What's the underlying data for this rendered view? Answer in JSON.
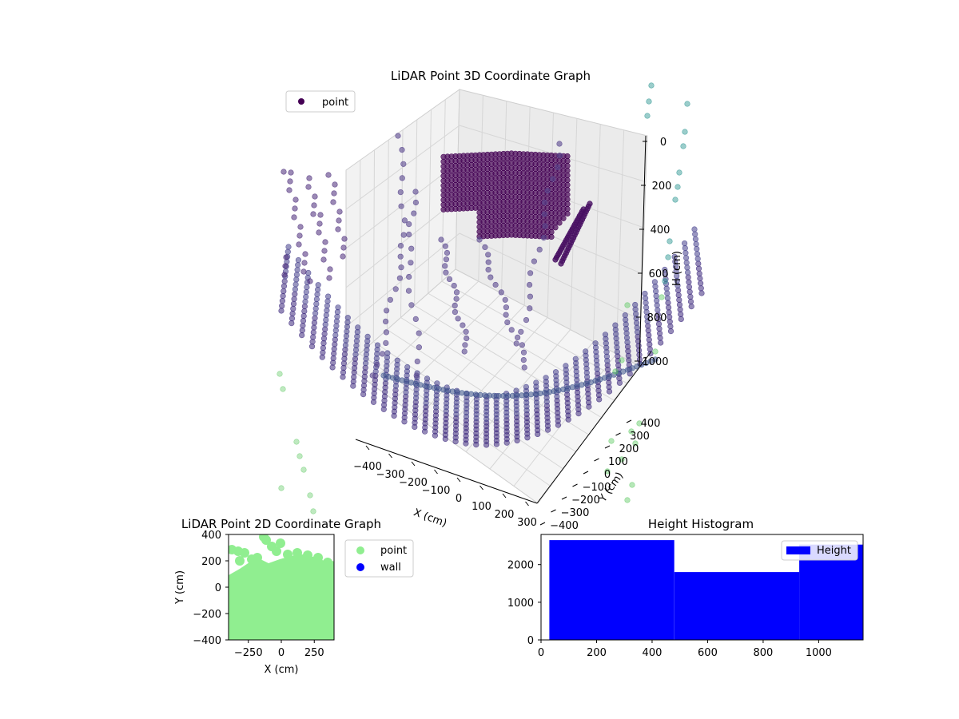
{
  "colors": {
    "viridis_dark": "#440154",
    "viridis_mid": "#3b528b",
    "viridis_teal": "#21918c",
    "light_green": "#90ee90",
    "wall_blue": "#0000ff",
    "hist_blue": "#0000ff",
    "pane": "#f2f2f2"
  },
  "chart_data": [
    {
      "type": "scatter",
      "title": "LiDAR Point 3D Coordinate Graph",
      "xlabel": "X (cm)",
      "ylabel": "Y (cm)",
      "zlabel": "H (cm)",
      "x_ticks": [
        "−400",
        "−300",
        "−200",
        "−100",
        "0",
        "100",
        "200",
        "300"
      ],
      "y_ticks": [
        "−400",
        "−300",
        "−200",
        "−100",
        "0",
        "100",
        "200",
        "300",
        "400"
      ],
      "z_ticks": [
        "0",
        "200",
        "400",
        "600",
        "800",
        "1000"
      ],
      "xlim": [
        -400,
        400
      ],
      "ylim": [
        -400,
        400
      ],
      "zlim": [
        0,
        1000
      ],
      "z_inverted": true,
      "legend": {
        "entries": [
          "point"
        ],
        "placement": "upper-left"
      },
      "grid": true,
      "colormap": "viridis"
    },
    {
      "type": "scatter",
      "title": "LiDAR Point 2D Coordinate Graph",
      "xlabel": "X (cm)",
      "ylabel": "Y (cm)",
      "x_ticks": [
        "−250",
        "0",
        "250"
      ],
      "y_ticks": [
        "400",
        "200",
        "0",
        "−200",
        "−400"
      ],
      "xlim": [
        -400,
        400
      ],
      "ylim": [
        -400,
        400
      ],
      "legend": {
        "entries": [
          "point",
          "wall"
        ],
        "placement": "outside-right"
      },
      "series": [
        {
          "name": "point",
          "color": "#90ee90"
        },
        {
          "name": "wall",
          "color": "#0000ff"
        }
      ]
    },
    {
      "type": "bar",
      "title": "Height Histogram",
      "x_ticks": [
        "0",
        "200",
        "400",
        "600",
        "800",
        "1000"
      ],
      "y_ticks": [
        "0",
        "1000",
        "2000"
      ],
      "xlim": [
        0,
        1160
      ],
      "ylim": [
        0,
        2800
      ],
      "legend": {
        "entries": [
          "Height"
        ],
        "placement": "upper-right"
      },
      "series": [
        {
          "name": "Height",
          "bins": [
            {
              "start": 30,
              "end": 480,
              "value": 2650
            },
            {
              "start": 480,
              "end": 930,
              "value": 1800
            },
            {
              "start": 930,
              "end": 1160,
              "value": 2530
            }
          ]
        }
      ]
    }
  ]
}
